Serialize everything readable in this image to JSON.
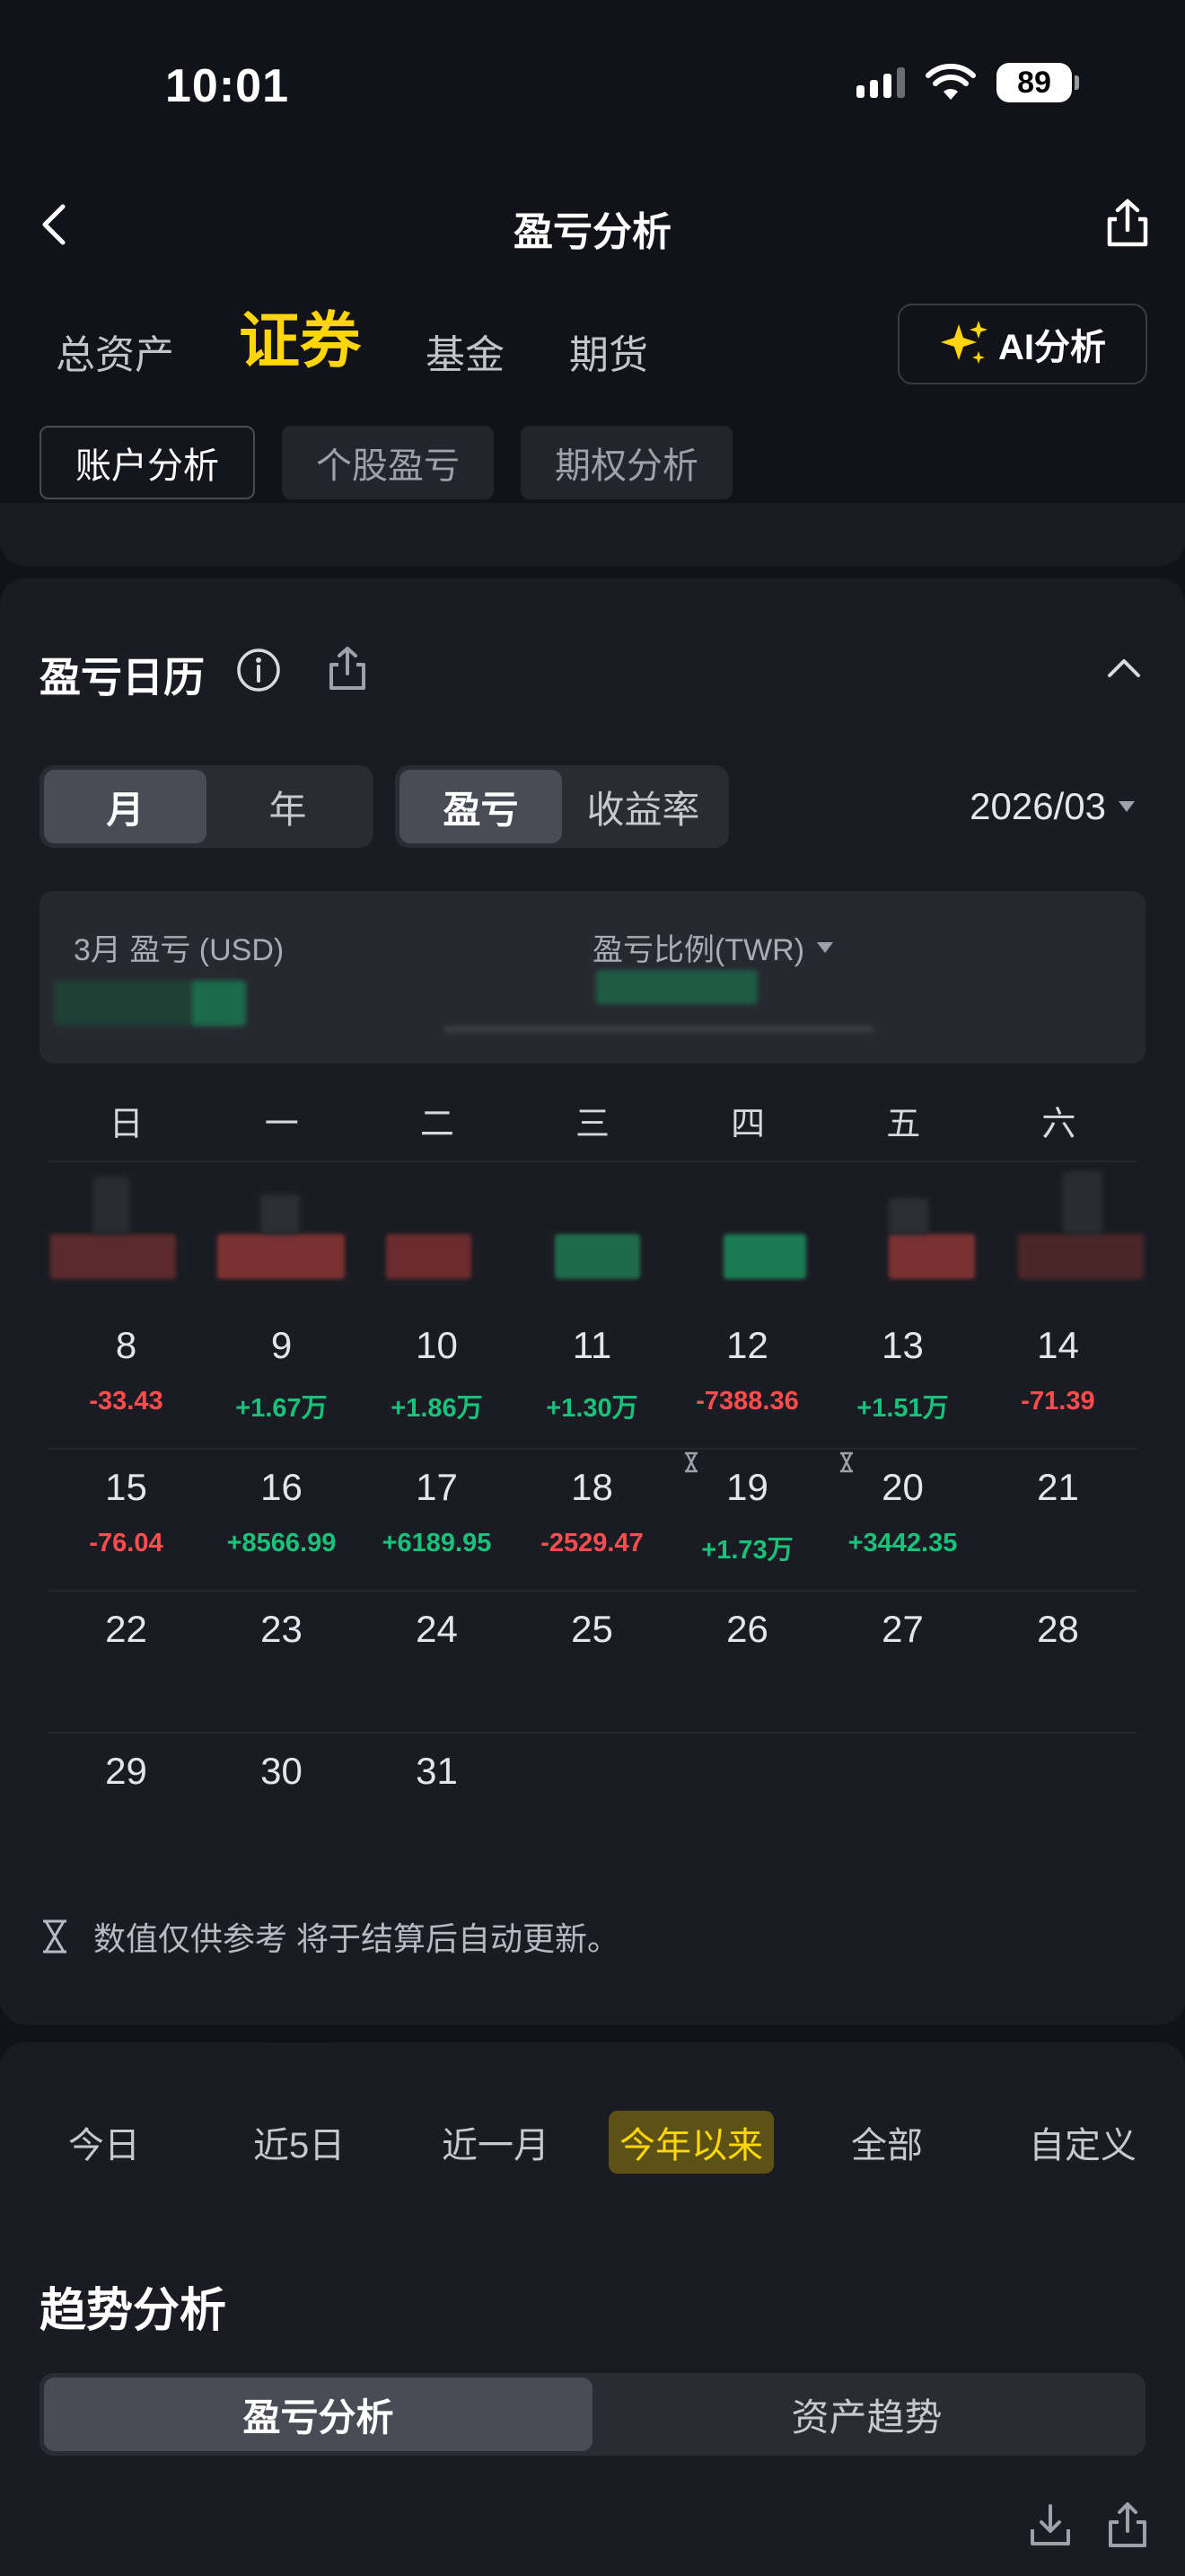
{
  "status": {
    "time": "10:01",
    "battery": "89"
  },
  "header": {
    "title": "盈亏分析"
  },
  "category_tabs": [
    "总资产",
    "证券",
    "基金",
    "期货"
  ],
  "ai_button": "AI分析",
  "sub_tabs": [
    "账户分析",
    "个股盈亏",
    "期权分析"
  ],
  "calendar": {
    "title": "盈亏日历",
    "period_seg": [
      "月",
      "年"
    ],
    "metric_seg": [
      "盈亏",
      "收益率"
    ],
    "month": "2026/03",
    "summary_left": "3月 盈亏 (USD)",
    "summary_right": "盈亏比例(TWR)",
    "weekdays": [
      "日",
      "一",
      "二",
      "三",
      "四",
      "五",
      "六"
    ],
    "days": [
      {
        "d": "8",
        "v": "-33.43",
        "c": "red"
      },
      {
        "d": "9",
        "v": "+1.67万",
        "c": "green"
      },
      {
        "d": "10",
        "v": "+1.86万",
        "c": "green"
      },
      {
        "d": "11",
        "v": "+1.30万",
        "c": "green"
      },
      {
        "d": "12",
        "v": "-7388.36",
        "c": "red"
      },
      {
        "d": "13",
        "v": "+1.51万",
        "c": "green"
      },
      {
        "d": "14",
        "v": "-71.39",
        "c": "red"
      },
      {
        "d": "15",
        "v": "-76.04",
        "c": "red"
      },
      {
        "d": "16",
        "v": "+8566.99",
        "c": "green"
      },
      {
        "d": "17",
        "v": "+6189.95",
        "c": "green"
      },
      {
        "d": "18",
        "v": "-2529.47",
        "c": "red"
      },
      {
        "d": "19",
        "v": "+1.73万",
        "c": "green"
      },
      {
        "d": "20",
        "v": "+3442.35",
        "c": "green"
      },
      {
        "d": "21",
        "v": "",
        "c": ""
      },
      {
        "d": "22",
        "v": "",
        "c": ""
      },
      {
        "d": "23",
        "v": "",
        "c": ""
      },
      {
        "d": "24",
        "v": "",
        "c": ""
      },
      {
        "d": "25",
        "v": "",
        "c": ""
      },
      {
        "d": "26",
        "v": "",
        "c": ""
      },
      {
        "d": "27",
        "v": "",
        "c": ""
      },
      {
        "d": "28",
        "v": "",
        "c": ""
      },
      {
        "d": "29",
        "v": "",
        "c": ""
      },
      {
        "d": "30",
        "v": "",
        "c": ""
      },
      {
        "d": "31",
        "v": "",
        "c": ""
      }
    ],
    "note": "数值仅供参考        将于结算后自动更新。"
  },
  "ranges": [
    "今日",
    "近5日",
    "近一月",
    "今年以来",
    "全部",
    "自定义"
  ],
  "trend": {
    "title": "趋势分析",
    "tabs": [
      "盈亏分析",
      "资产趋势"
    ]
  },
  "colors": {
    "accent": "#ffd60a",
    "loss": "#ff4d4f",
    "gain": "#19c27a"
  }
}
